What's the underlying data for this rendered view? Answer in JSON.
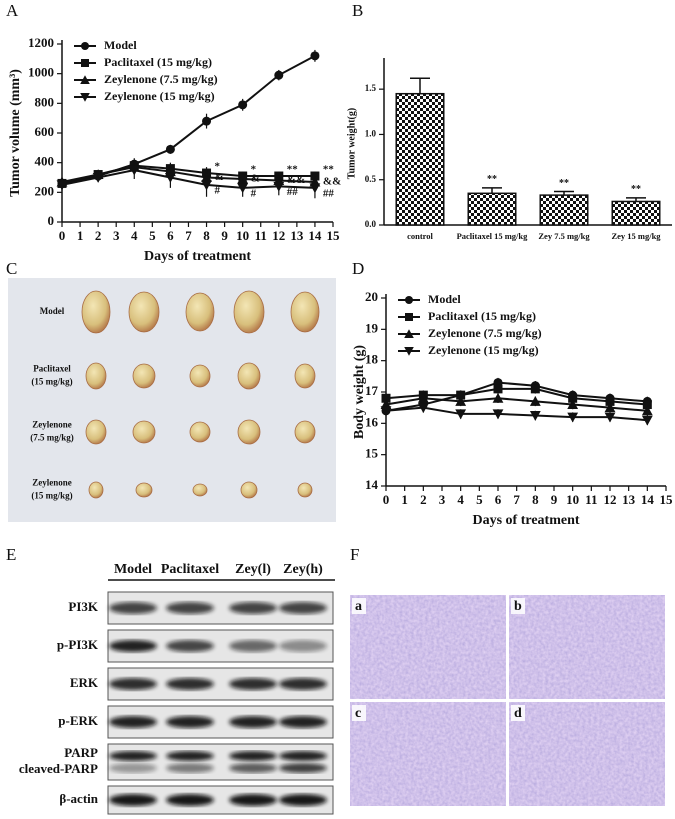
{
  "chart_data": [
    {
      "panel": "A",
      "type": "line",
      "xlabel": "Days of treatment",
      "ylabel": "Tumor volume (mm³)",
      "x": [
        0,
        2,
        4,
        6,
        8,
        10,
        12,
        14
      ],
      "series": [
        {
          "name": "Model",
          "color": "#111111",
          "marker": "circle",
          "values": [
            260,
            310,
            390,
            490,
            680,
            790,
            990,
            1120
          ],
          "errors": [
            30,
            30,
            40,
            30,
            50,
            40,
            35,
            40
          ]
        },
        {
          "name": "Paclitaxel (15 mg/kg)",
          "color": "#111111",
          "marker": "square",
          "values": [
            260,
            320,
            380,
            360,
            330,
            310,
            310,
            310
          ],
          "errors": [
            20,
            25,
            40,
            40,
            40,
            30,
            30,
            30
          ]
        },
        {
          "name": "Zeylenone (7.5 mg/kg)",
          "color": "#111111",
          "marker": "triangle-up",
          "values": [
            270,
            320,
            370,
            340,
            300,
            290,
            280,
            270
          ],
          "errors": [
            30,
            25,
            40,
            50,
            60,
            40,
            40,
            40
          ]
        },
        {
          "name": "Zeylenone (15 mg/kg)",
          "color": "#111111",
          "marker": "triangle-down",
          "values": [
            250,
            300,
            350,
            300,
            250,
            230,
            240,
            230
          ],
          "errors": [
            40,
            30,
            60,
            70,
            80,
            60,
            60,
            70
          ]
        }
      ],
      "annotations": [
        {
          "x": 8,
          "labels": [
            "*",
            "&",
            "#"
          ]
        },
        {
          "x": 10,
          "labels": [
            "*",
            "&",
            "#"
          ]
        },
        {
          "x": 12,
          "labels": [
            "**",
            "&&",
            "##"
          ]
        },
        {
          "x": 14,
          "labels": [
            "**",
            "&&",
            "##"
          ]
        }
      ],
      "xlim": [
        0,
        15
      ],
      "xticks": [
        0,
        1,
        2,
        3,
        4,
        5,
        6,
        7,
        8,
        9,
        10,
        11,
        12,
        13,
        14,
        15
      ],
      "ylim": [
        0,
        1200
      ],
      "yticks": [
        0,
        200,
        400,
        600,
        800,
        1000,
        1200
      ],
      "legend": "upper left"
    },
    {
      "panel": "B",
      "type": "bar",
      "ylabel": "Tumor weight(g)",
      "categories": [
        "control",
        "Paclitaxel 15 mg/kg",
        "Zey 7.5 mg/kg",
        "Zey 15 mg/kg"
      ],
      "values": [
        1.45,
        0.35,
        0.33,
        0.26
      ],
      "errors": [
        0.17,
        0.06,
        0.04,
        0.04
      ],
      "labels": [
        null,
        "**",
        "**",
        "**"
      ],
      "pattern": "checker",
      "color": "#111111",
      "ylim": [
        0,
        1.8
      ],
      "yticks": [
        {
          "value": 0,
          "label": "0.0"
        },
        {
          "value": 0.5,
          "label": "0.5"
        },
        {
          "value": 1,
          "label": "1.0"
        },
        {
          "value": 1.5,
          "label": "1.5"
        }
      ]
    },
    {
      "panel": "D",
      "type": "line",
      "xlabel": "Days of treatment",
      "ylabel": "Body weight (g)",
      "x": [
        0,
        2,
        4,
        6,
        8,
        10,
        12,
        14
      ],
      "series": [
        {
          "name": "Model",
          "color": "#111111",
          "marker": "circle",
          "values": [
            16.4,
            16.6,
            16.9,
            17.3,
            17.2,
            16.9,
            16.8,
            16.7
          ],
          "errors": [
            0.15,
            0.15,
            0.15,
            0.15,
            0.15,
            0.15,
            0.15,
            0.15
          ]
        },
        {
          "name": "Paclitaxel (15 mg/kg)",
          "color": "#111111",
          "marker": "square",
          "values": [
            16.8,
            16.9,
            16.9,
            17.1,
            17.1,
            16.8,
            16.7,
            16.6
          ],
          "errors": [
            0.15,
            0.15,
            0.15,
            0.15,
            0.15,
            0.15,
            0.15,
            0.15
          ]
        },
        {
          "name": "Zeylenone (7.5 mg/kg)",
          "color": "#111111",
          "marker": "triangle-up",
          "values": [
            16.6,
            16.8,
            16.7,
            16.8,
            16.7,
            16.6,
            16.5,
            16.4
          ],
          "errors": [
            0.15,
            0.15,
            0.15,
            0.15,
            0.15,
            0.15,
            0.15,
            0.15
          ]
        },
        {
          "name": "Zeylenone (15 mg/kg)",
          "color": "#111111",
          "marker": "triangle-down",
          "values": [
            16.4,
            16.5,
            16.3,
            16.3,
            16.25,
            16.2,
            16.2,
            16.1
          ],
          "errors": [
            0.15,
            0.15,
            0.15,
            0.15,
            0.15,
            0.15,
            0.15,
            0.15
          ]
        }
      ],
      "xlim": [
        0,
        15
      ],
      "xticks": [
        0,
        1,
        2,
        3,
        4,
        5,
        6,
        7,
        8,
        9,
        10,
        11,
        12,
        13,
        14,
        15
      ],
      "ylim": [
        14,
        20
      ],
      "yticks": [
        14,
        15,
        16,
        17,
        18,
        19,
        20
      ],
      "legend": "upper left"
    }
  ],
  "photo": {
    "panel": "C",
    "labels": [
      [
        "Model"
      ],
      [
        "Paclitaxel",
        "(15 mg/kg)"
      ],
      [
        "Zeylenone",
        "(7.5 mg/kg)"
      ],
      [
        "Zeylenone",
        "(15 mg/kg)"
      ]
    ]
  },
  "blot": {
    "panel": "E",
    "lanes": [
      "Model",
      "Paclitaxel",
      "Zey(l)",
      "Zey(h)"
    ],
    "rows": [
      [
        "PI3K"
      ],
      [
        "p-PI3K"
      ],
      [
        "ERK"
      ],
      [
        "p-ERK"
      ],
      [
        "PARP",
        "cleaved-PARP"
      ],
      [
        "β-actin"
      ]
    ]
  },
  "histology": {
    "panel": "F",
    "labels": [
      "a",
      "b",
      "c",
      "d"
    ]
  }
}
